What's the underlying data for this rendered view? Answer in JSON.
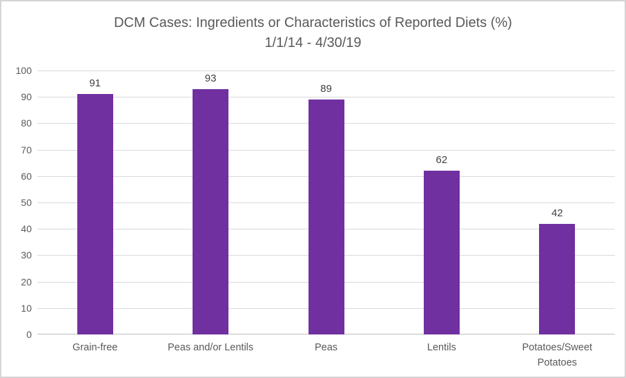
{
  "chart_data": {
    "type": "bar",
    "title": "DCM Cases: Ingredients or Characteristics of Reported Diets (%)",
    "subtitle": "1/1/14 - 4/30/19",
    "categories": [
      "Grain-free",
      "Peas and/or Lentils",
      "Peas",
      "Lentils",
      "Potatoes/Sweet Potatoes"
    ],
    "categories_display": [
      "Grain-free",
      "Peas and/or Lentils",
      "Peas",
      "Lentils",
      "Potatoes/Sweet\nPotatoes"
    ],
    "values": [
      91,
      93,
      89,
      62,
      42
    ],
    "xlabel": "",
    "ylabel": "",
    "ylim": [
      0,
      100
    ],
    "ytick_step": 10,
    "ytick_labels": [
      "0",
      "10",
      "20",
      "30",
      "40",
      "50",
      "60",
      "70",
      "80",
      "90",
      "100"
    ],
    "grid": true,
    "legend": false,
    "colors": {
      "bar": "#7030a0",
      "gridline": "#d9d9d9",
      "axis_line": "#bfbfbf",
      "text": "#595959",
      "value_label": "#404040",
      "border": "#d6d4d4",
      "background": "#ffffff"
    }
  }
}
